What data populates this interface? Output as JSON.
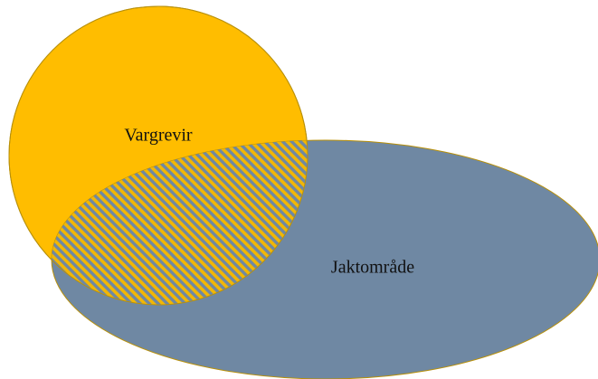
{
  "venn": {
    "left_set": "Vargrevir",
    "right_set": "Jaktområde"
  }
}
